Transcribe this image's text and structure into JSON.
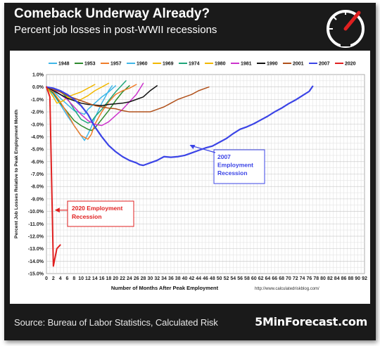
{
  "header": {
    "title": "Comeback Underway Already?",
    "subtitle": "Percent job losses in post-WWII recessions"
  },
  "footer": {
    "source": "Source: Bureau of Labor Statistics, Calculated Risk",
    "brand": "5MinForecast.com"
  },
  "icons": {
    "logo": "speedometer-gauge-icon"
  },
  "chart_data": {
    "type": "line",
    "title": "",
    "xlabel": "Number of Months After Peak Employment",
    "ylabel": "Percent Job Losses Relative to Peak Employment Month",
    "source_url": "http://www.calculatedriskblog.com/",
    "xlim": [
      0,
      92
    ],
    "ylim": [
      -15.0,
      1.0
    ],
    "x_ticks": [
      0,
      2,
      4,
      6,
      8,
      10,
      12,
      14,
      16,
      18,
      20,
      22,
      24,
      26,
      28,
      30,
      32,
      34,
      36,
      38,
      40,
      42,
      44,
      46,
      48,
      50,
      52,
      54,
      56,
      58,
      60,
      62,
      64,
      66,
      68,
      70,
      72,
      74,
      76,
      78,
      80,
      82,
      84,
      86,
      88,
      90,
      92
    ],
    "y_ticks": [
      1.0,
      0.0,
      -1.0,
      -2.0,
      -3.0,
      -4.0,
      -5.0,
      -6.0,
      -7.0,
      -8.0,
      -9.0,
      -10.0,
      -11.0,
      -12.0,
      -13.0,
      -14.0,
      -15.0
    ],
    "grid": true,
    "legend": "top",
    "series": [
      {
        "name": "1948",
        "color": "#3fb7e8",
        "width": 1.5,
        "points": [
          [
            0,
            0
          ],
          [
            2,
            -0.6
          ],
          [
            4,
            -1.4
          ],
          [
            6,
            -2.3
          ],
          [
            8,
            -3.1
          ],
          [
            10,
            -3.9
          ],
          [
            11,
            -4.3
          ],
          [
            12,
            -3.8
          ],
          [
            13,
            -3.2
          ],
          [
            14,
            -2.5
          ],
          [
            15,
            -1.9
          ],
          [
            16,
            -1.3
          ],
          [
            17,
            -0.8
          ],
          [
            18,
            -0.3
          ],
          [
            19,
            0.1
          ]
        ]
      },
      {
        "name": "1953",
        "color": "#2d8a2d",
        "width": 1.5,
        "points": [
          [
            0,
            0
          ],
          [
            2,
            -0.5
          ],
          [
            4,
            -1.3
          ],
          [
            6,
            -2.0
          ],
          [
            8,
            -2.7
          ],
          [
            10,
            -3.1
          ],
          [
            12,
            -3.4
          ],
          [
            13,
            -3.5
          ],
          [
            14,
            -3.3
          ],
          [
            16,
            -2.6
          ],
          [
            18,
            -1.9
          ],
          [
            20,
            -1.1
          ],
          [
            22,
            -0.4
          ],
          [
            24,
            0.1
          ]
        ]
      },
      {
        "name": "1957",
        "color": "#f07d2a",
        "width": 1.5,
        "points": [
          [
            0,
            0
          ],
          [
            2,
            -0.4
          ],
          [
            4,
            -1.2
          ],
          [
            6,
            -2.1
          ],
          [
            8,
            -3.1
          ],
          [
            10,
            -3.9
          ],
          [
            12,
            -4.2
          ],
          [
            13,
            -3.8
          ],
          [
            14,
            -3.0
          ],
          [
            16,
            -2.0
          ],
          [
            18,
            -1.2
          ],
          [
            20,
            -0.6
          ],
          [
            22,
            -0.3
          ],
          [
            24,
            -0.1
          ],
          [
            26,
            0.2
          ]
        ]
      },
      {
        "name": "1960",
        "color": "#3fb7e8",
        "width": 1.5,
        "points": [
          [
            0,
            0
          ],
          [
            2,
            -0.3
          ],
          [
            4,
            -0.9
          ],
          [
            6,
            -1.4
          ],
          [
            8,
            -1.9
          ],
          [
            10,
            -2.1
          ],
          [
            11,
            -2.2
          ],
          [
            12,
            -1.8
          ],
          [
            14,
            -1.3
          ],
          [
            16,
            -0.8
          ],
          [
            18,
            -0.4
          ],
          [
            20,
            0.1
          ]
        ]
      },
      {
        "name": "1969",
        "color": "#f2b800",
        "width": 1.5,
        "points": [
          [
            0,
            0
          ],
          [
            2,
            -0.1
          ],
          [
            4,
            -0.4
          ],
          [
            6,
            -0.8
          ],
          [
            8,
            -1.0
          ],
          [
            9,
            -1.2
          ],
          [
            10,
            -1.0
          ],
          [
            12,
            -0.7
          ],
          [
            14,
            -0.3
          ],
          [
            16,
            0.0
          ],
          [
            18,
            0.3
          ]
        ]
      },
      {
        "name": "1974",
        "color": "#1fa67a",
        "width": 1.5,
        "points": [
          [
            0,
            0
          ],
          [
            2,
            -0.1
          ],
          [
            4,
            -0.3
          ],
          [
            6,
            -0.9
          ],
          [
            8,
            -1.8
          ],
          [
            10,
            -2.6
          ],
          [
            12,
            -2.9
          ],
          [
            13,
            -2.8
          ],
          [
            14,
            -2.4
          ],
          [
            16,
            -1.8
          ],
          [
            18,
            -1.1
          ],
          [
            20,
            -0.4
          ],
          [
            22,
            0.2
          ],
          [
            23,
            0.5
          ]
        ]
      },
      {
        "name": "1980",
        "color": "#f2b800",
        "width": 1.5,
        "points": [
          [
            0,
            0
          ],
          [
            1,
            -0.4
          ],
          [
            2,
            -0.8
          ],
          [
            3,
            -1.3
          ],
          [
            4,
            -1.2
          ],
          [
            5,
            -1.1
          ],
          [
            6,
            -0.8
          ],
          [
            8,
            -0.6
          ],
          [
            10,
            -0.4
          ],
          [
            12,
            -0.1
          ],
          [
            14,
            0.2
          ]
        ]
      },
      {
        "name": "1981",
        "color": "#cc33cc",
        "width": 1.5,
        "points": [
          [
            0,
            0
          ],
          [
            2,
            -0.2
          ],
          [
            4,
            -0.6
          ],
          [
            6,
            -1.0
          ],
          [
            8,
            -1.6
          ],
          [
            10,
            -2.2
          ],
          [
            12,
            -2.7
          ],
          [
            14,
            -3.0
          ],
          [
            16,
            -3.1
          ],
          [
            18,
            -2.8
          ],
          [
            20,
            -2.3
          ],
          [
            22,
            -1.8
          ],
          [
            24,
            -1.2
          ],
          [
            26,
            -0.6
          ],
          [
            28,
            0.3
          ]
        ]
      },
      {
        "name": "1990",
        "color": "#111111",
        "width": 1.5,
        "points": [
          [
            0,
            0
          ],
          [
            2,
            -0.3
          ],
          [
            4,
            -0.6
          ],
          [
            6,
            -0.9
          ],
          [
            8,
            -1.1
          ],
          [
            10,
            -1.3
          ],
          [
            12,
            -1.4
          ],
          [
            14,
            -1.45
          ],
          [
            16,
            -1.5
          ],
          [
            18,
            -1.4
          ],
          [
            20,
            -1.35
          ],
          [
            22,
            -1.3
          ],
          [
            24,
            -1.2
          ],
          [
            26,
            -1.0
          ],
          [
            28,
            -0.8
          ],
          [
            30,
            -0.3
          ],
          [
            32,
            0.1
          ]
        ]
      },
      {
        "name": "2001",
        "color": "#b0501a",
        "width": 1.5,
        "points": [
          [
            0,
            0
          ],
          [
            2,
            -0.2
          ],
          [
            4,
            -0.4
          ],
          [
            6,
            -0.7
          ],
          [
            8,
            -0.9
          ],
          [
            10,
            -1.1
          ],
          [
            12,
            -1.3
          ],
          [
            14,
            -1.5
          ],
          [
            16,
            -1.6
          ],
          [
            18,
            -1.7
          ],
          [
            20,
            -1.75
          ],
          [
            22,
            -1.9
          ],
          [
            24,
            -2.0
          ],
          [
            26,
            -2.0
          ],
          [
            28,
            -2.0
          ],
          [
            30,
            -2.0
          ],
          [
            32,
            -1.8
          ],
          [
            34,
            -1.6
          ],
          [
            36,
            -1.3
          ],
          [
            38,
            -1.0
          ],
          [
            40,
            -0.8
          ],
          [
            42,
            -0.6
          ],
          [
            44,
            -0.3
          ],
          [
            46,
            -0.1
          ],
          [
            47,
            0.0
          ]
        ]
      },
      {
        "name": "2007",
        "color": "#3b44e6",
        "width": 2.2,
        "points": [
          [
            0,
            0
          ],
          [
            2,
            -0.1
          ],
          [
            4,
            -0.3
          ],
          [
            6,
            -0.6
          ],
          [
            8,
            -1.0
          ],
          [
            10,
            -1.5
          ],
          [
            12,
            -2.2
          ],
          [
            14,
            -3.2
          ],
          [
            16,
            -4.0
          ],
          [
            18,
            -4.7
          ],
          [
            20,
            -5.2
          ],
          [
            22,
            -5.6
          ],
          [
            24,
            -5.9
          ],
          [
            26,
            -6.1
          ],
          [
            27,
            -6.25
          ],
          [
            28,
            -6.3
          ],
          [
            29,
            -6.2
          ],
          [
            30,
            -6.1
          ],
          [
            32,
            -5.9
          ],
          [
            34,
            -5.6
          ],
          [
            36,
            -5.65
          ],
          [
            38,
            -5.6
          ],
          [
            40,
            -5.5
          ],
          [
            42,
            -5.3
          ],
          [
            44,
            -5.1
          ],
          [
            46,
            -4.9
          ],
          [
            48,
            -4.75
          ],
          [
            50,
            -4.45
          ],
          [
            52,
            -4.15
          ],
          [
            54,
            -3.75
          ],
          [
            56,
            -3.4
          ],
          [
            58,
            -3.2
          ],
          [
            60,
            -2.95
          ],
          [
            62,
            -2.65
          ],
          [
            64,
            -2.35
          ],
          [
            66,
            -2.0
          ],
          [
            68,
            -1.7
          ],
          [
            70,
            -1.35
          ],
          [
            72,
            -1.05
          ],
          [
            74,
            -0.7
          ],
          [
            76,
            -0.35
          ],
          [
            77,
            0.05
          ]
        ]
      },
      {
        "name": "2020",
        "color": "#e02020",
        "width": 2.0,
        "points": [
          [
            0,
            0
          ],
          [
            1,
            -0.8
          ],
          [
            2,
            -14.4
          ],
          [
            3,
            -13.0
          ],
          [
            4,
            -12.7
          ]
        ]
      }
    ],
    "annotations": [
      {
        "text_lines": [
          "2007",
          "Employment",
          "Recession"
        ],
        "color": "#3b44e6",
        "target": [
          41,
          -4.6
        ]
      },
      {
        "text_lines": [
          "2020 Employment",
          "Recession"
        ],
        "color": "#e02020",
        "target": [
          2,
          -9.9
        ]
      }
    ]
  }
}
